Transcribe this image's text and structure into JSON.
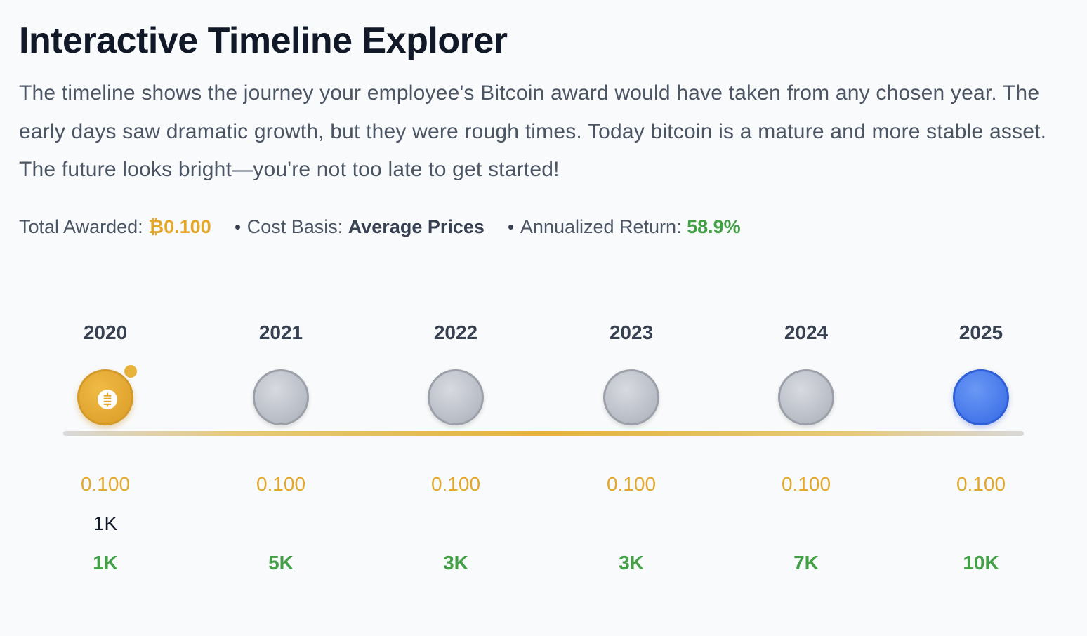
{
  "header": {
    "title": "Interactive Timeline Explorer",
    "description": "The timeline shows the journey your employee's Bitcoin award would have taken from any chosen year. The early days saw dramatic growth, but they were rough times. Today bitcoin is a mature and more stable asset. The future looks bright—you're not too late to get started!"
  },
  "stats": {
    "total_label": "Total Awarded:",
    "total_value": "₿0.100",
    "cost_label": "Cost Basis:",
    "cost_value": "Average Prices",
    "return_label": "Annualized Return:",
    "return_value": "58.9%"
  },
  "timeline": {
    "years": [
      {
        "year": "2020",
        "btc": "0.100",
        "cost": "1K",
        "value": "1K",
        "state": "selected"
      },
      {
        "year": "2021",
        "btc": "0.100",
        "cost": "",
        "value": "5K",
        "state": "default"
      },
      {
        "year": "2022",
        "btc": "0.100",
        "cost": "",
        "value": "3K",
        "state": "default"
      },
      {
        "year": "2023",
        "btc": "0.100",
        "cost": "",
        "value": "3K",
        "state": "default"
      },
      {
        "year": "2024",
        "btc": "0.100",
        "cost": "",
        "value": "7K",
        "state": "default"
      },
      {
        "year": "2025",
        "btc": "0.100",
        "cost": "",
        "value": "10K",
        "state": "current"
      }
    ]
  },
  "colors": {
    "gold": "#e3a82b",
    "green": "#43a047",
    "blue": "#3f72e8",
    "grey": "#b8bcc5"
  },
  "icons": {
    "selected_node": "bitcoin-coin-icon"
  }
}
